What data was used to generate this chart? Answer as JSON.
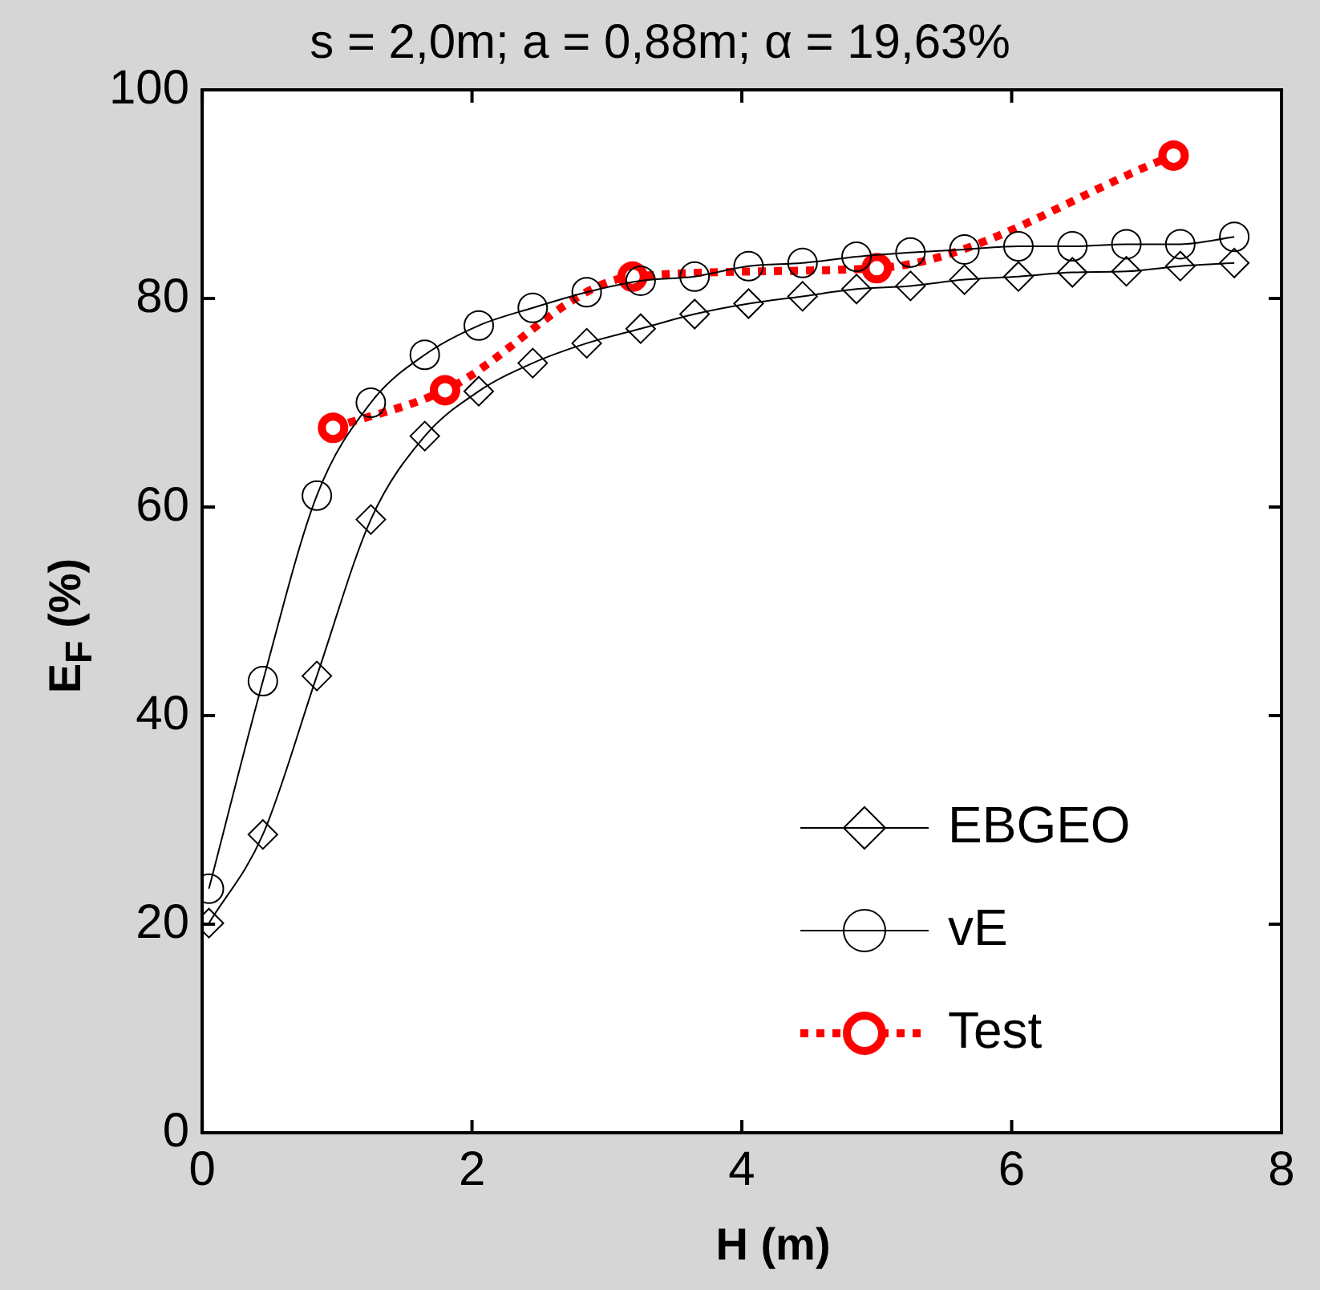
{
  "chart_data": {
    "type": "line",
    "title": "s = 2,0m; a = 0,88m; α = 19,63%",
    "xlabel": "H (m)",
    "ylabel": "E$_{F}$ (%)",
    "xlim": [
      0,
      8
    ],
    "xticks": [
      0,
      2,
      4,
      6,
      8
    ],
    "ylim": [
      0,
      100
    ],
    "yticks": [
      0,
      20,
      40,
      60,
      80,
      100
    ],
    "grid": false,
    "legend": "bottom right",
    "series": [
      {
        "name": "EBGEO",
        "color": "#000000",
        "marker": "diamond",
        "line_style": "solid",
        "x": [
          0.05,
          0.45,
          0.85,
          1.25,
          1.65,
          2.05,
          2.45,
          2.85,
          3.25,
          3.65,
          4.05,
          4.45,
          4.85,
          5.25,
          5.65,
          6.05,
          6.45,
          6.85,
          7.25,
          7.65
        ],
        "values": [
          20.1,
          28.6,
          43.8,
          58.8,
          66.8,
          71.1,
          73.8,
          75.7,
          77.1,
          78.5,
          79.5,
          80.2,
          80.9,
          81.2,
          81.8,
          82.1,
          82.5,
          82.6,
          83.1,
          83.4
        ]
      },
      {
        "name": "vE",
        "color": "#000000",
        "marker": "circle",
        "line_style": "solid",
        "x": [
          0.05,
          0.45,
          0.85,
          1.25,
          1.65,
          2.05,
          2.45,
          2.85,
          3.25,
          3.65,
          4.05,
          4.45,
          4.85,
          5.25,
          5.65,
          6.05,
          6.45,
          6.85,
          7.25,
          7.65
        ],
        "values": [
          23.4,
          43.3,
          61.1,
          70.0,
          74.6,
          77.4,
          79.1,
          80.6,
          81.7,
          82.1,
          83.1,
          83.4,
          84.0,
          84.4,
          84.7,
          85.0,
          85.0,
          85.2,
          85.2,
          85.9
        ]
      },
      {
        "name": "Test",
        "color": "#ff0000",
        "marker": "circle",
        "line_style": "dotted",
        "x": [
          0.97,
          1.8,
          3.19,
          5.0,
          7.2
        ],
        "values": [
          67.6,
          71.2,
          82.1,
          82.9,
          93.7
        ]
      }
    ]
  }
}
